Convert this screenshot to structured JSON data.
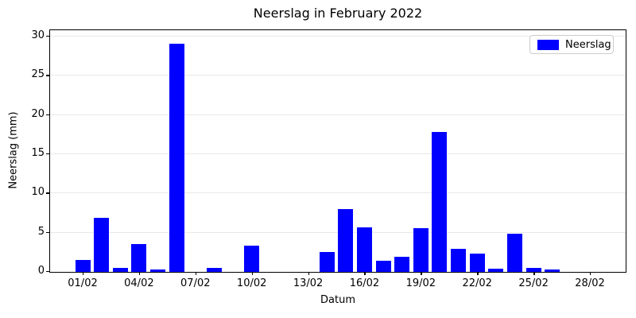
{
  "chart_data": {
    "type": "bar",
    "title": "Neerslag in February 2022",
    "xlabel": "Datum",
    "ylabel": "Neerslag (mm)",
    "categories": [
      "01/02",
      "02/02",
      "03/02",
      "04/02",
      "05/02",
      "06/02",
      "07/02",
      "08/02",
      "09/02",
      "10/02",
      "11/02",
      "12/02",
      "13/02",
      "14/02",
      "15/02",
      "16/02",
      "17/02",
      "18/02",
      "19/02",
      "20/02",
      "21/02",
      "22/02",
      "23/02",
      "24/02",
      "25/02",
      "26/02",
      "27/02",
      "28/02"
    ],
    "values": [
      1.5,
      6.9,
      0.5,
      3.5,
      0.3,
      29.1,
      0,
      0.5,
      0,
      3.3,
      0,
      0,
      0,
      2.5,
      8.0,
      5.7,
      1.4,
      1.9,
      5.6,
      17.8,
      2.9,
      2.3,
      0.4,
      4.9,
      0.5,
      0.3,
      0,
      0
    ],
    "series_name": "Neerslag",
    "yticks": [
      0,
      5,
      10,
      15,
      20,
      25,
      30
    ],
    "xtick_labels": [
      "01/02",
      "04/02",
      "07/02",
      "10/02",
      "13/02",
      "16/02",
      "19/02",
      "22/02",
      "25/02",
      "28/02"
    ],
    "xtick_every_n_days": 3,
    "ylim": [
      0,
      30.7
    ],
    "grid": "horizontal-only",
    "legend_position": "upper-right"
  },
  "legend": {
    "label": "Neerslag"
  },
  "colors": {
    "bar": "#0000ff",
    "grid": "#e8e8e8",
    "spine": "#000000",
    "legend_border": "#cccccc",
    "background": "#ffffff"
  }
}
